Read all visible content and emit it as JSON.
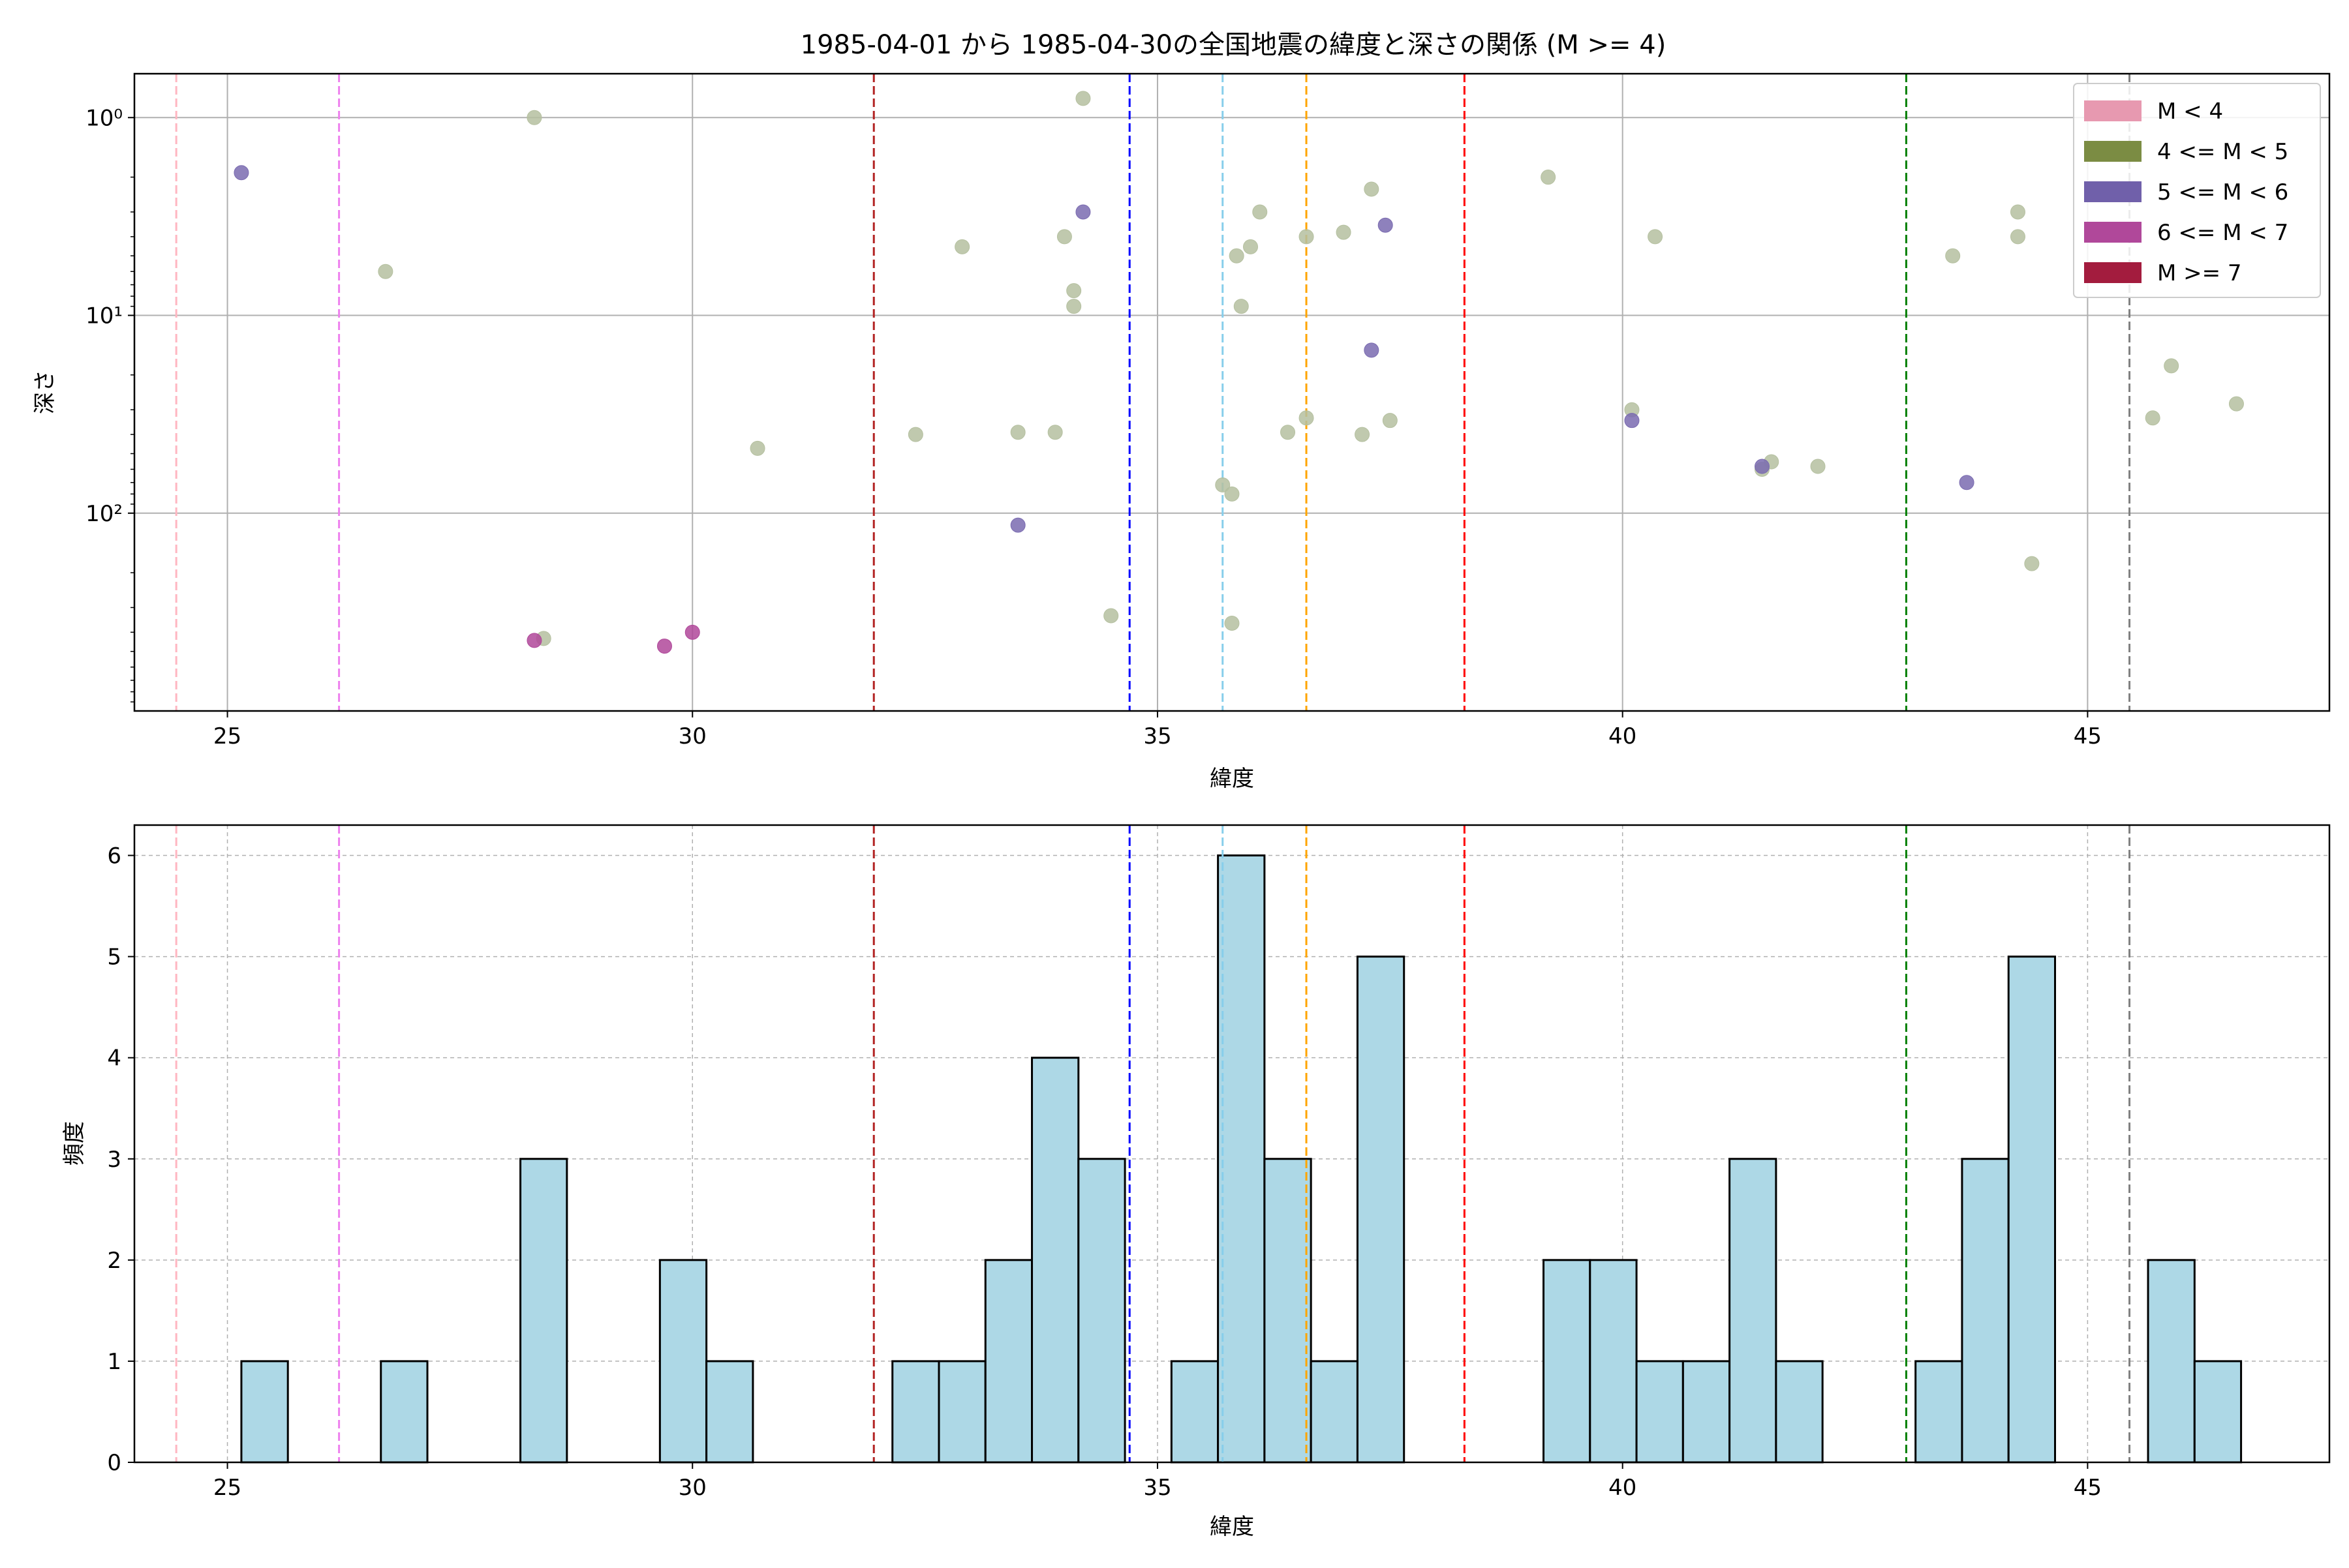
{
  "title": "1985-04-01 から 1985-04-30の全国地震の緯度と深さの関係 (M >= 4)",
  "chart_data": [
    {
      "type": "scatter",
      "title": "1985-04-01 から 1985-04-30の全国地震の緯度と深さの関係 (M >= 4)",
      "xlabel": "緯度",
      "ylabel": "深さ",
      "xlim": [
        24.0,
        47.6
      ],
      "ylim": [
        1000,
        0.6
      ],
      "yscale": "log",
      "y_inverted": true,
      "grid": true,
      "legend_position": "upper right",
      "x_ticks": [
        25,
        30,
        35,
        40,
        45
      ],
      "y_ticks": [
        {
          "value": 1,
          "label": "10⁰"
        },
        {
          "value": 10,
          "label": "10¹"
        },
        {
          "value": 100,
          "label": "10²"
        }
      ],
      "legend": [
        {
          "label": "M < 4",
          "color": "#e799b0"
        },
        {
          "label": "4 <= M < 5",
          "color": "#7b8c43"
        },
        {
          "label": "5 <= M < 6",
          "color": "#7060aa"
        },
        {
          "label": "6 <= M < 7",
          "color": "#b0489a"
        },
        {
          "label": "M >= 7",
          "color": "#a31c3e"
        }
      ],
      "vertical_lines": [
        {
          "x": 24.45,
          "color": "#ffb6c1"
        },
        {
          "x": 26.2,
          "color": "#ee82ee"
        },
        {
          "x": 31.95,
          "color": "#b22222"
        },
        {
          "x": 34.7,
          "color": "#0000ff"
        },
        {
          "x": 35.7,
          "color": "#87ceeb"
        },
        {
          "x": 36.6,
          "color": "#ffa500"
        },
        {
          "x": 38.3,
          "color": "#ff0000"
        },
        {
          "x": 43.05,
          "color": "#008000"
        },
        {
          "x": 45.45,
          "color": "#808080"
        }
      ],
      "series": [
        {
          "name": "4 <= M < 5",
          "color": "#b5c0a0",
          "points": [
            [
              28.3,
              1
            ],
            [
              26.7,
              6
            ],
            [
              28.4,
              430
            ],
            [
              30.7,
              47
            ],
            [
              32.4,
              40
            ],
            [
              32.9,
              4.5
            ],
            [
              33.5,
              39
            ],
            [
              33.9,
              39
            ],
            [
              34.0,
              4
            ],
            [
              34.1,
              7.5
            ],
            [
              34.1,
              9
            ],
            [
              34.2,
              0.8
            ],
            [
              34.5,
              330
            ],
            [
              35.7,
              72
            ],
            [
              35.8,
              80
            ],
            [
              35.8,
              360
            ],
            [
              35.85,
              5
            ],
            [
              35.9,
              9
            ],
            [
              36.0,
              4.5
            ],
            [
              36.1,
              3
            ],
            [
              36.4,
              39
            ],
            [
              36.6,
              33
            ],
            [
              36.6,
              4
            ],
            [
              37.0,
              3.8
            ],
            [
              37.2,
              40
            ],
            [
              37.3,
              2.3
            ],
            [
              37.5,
              34
            ],
            [
              39.2,
              2
            ],
            [
              40.1,
              30
            ],
            [
              40.35,
              4
            ],
            [
              41.5,
              60
            ],
            [
              41.6,
              55
            ],
            [
              42.1,
              58
            ],
            [
              43.55,
              5
            ],
            [
              44.25,
              3
            ],
            [
              44.25,
              4
            ],
            [
              44.4,
              180
            ],
            [
              45.7,
              33
            ],
            [
              45.9,
              18
            ],
            [
              46.6,
              28
            ]
          ]
        },
        {
          "name": "5 <= M < 6",
          "color": "#7a6bb0",
          "points": [
            [
              25.15,
              1.9
            ],
            [
              33.5,
              115
            ],
            [
              34.2,
              3
            ],
            [
              37.3,
              15
            ],
            [
              37.45,
              3.5
            ],
            [
              40.1,
              34
            ],
            [
              41.5,
              58
            ],
            [
              43.7,
              70
            ]
          ]
        },
        {
          "name": "6 <= M < 7",
          "color": "#b0489a",
          "points": [
            [
              28.3,
              440
            ],
            [
              30.0,
              400
            ],
            [
              29.7,
              470
            ]
          ]
        }
      ]
    },
    {
      "type": "bar",
      "xlabel": "緯度",
      "ylabel": "頻度",
      "xlim": [
        24.0,
        47.6
      ],
      "ylim": [
        0,
        6.3
      ],
      "grid": true,
      "x_ticks": [
        25,
        30,
        35,
        40,
        45
      ],
      "y_ticks": [
        0,
        1,
        2,
        3,
        4,
        5,
        6
      ],
      "bar_color": "#add8e6",
      "bin_width": 0.5,
      "bins": [
        {
          "x0": 25.15,
          "count": 1
        },
        {
          "x0": 26.65,
          "count": 1
        },
        {
          "x0": 28.15,
          "count": 3
        },
        {
          "x0": 29.65,
          "count": 2
        },
        {
          "x0": 30.15,
          "count": 1
        },
        {
          "x0": 32.15,
          "count": 1
        },
        {
          "x0": 32.65,
          "count": 1
        },
        {
          "x0": 33.15,
          "count": 2
        },
        {
          "x0": 33.65,
          "count": 4
        },
        {
          "x0": 34.15,
          "count": 3
        },
        {
          "x0": 35.15,
          "count": 1
        },
        {
          "x0": 35.65,
          "count": 6
        },
        {
          "x0": 36.15,
          "count": 3
        },
        {
          "x0": 36.65,
          "count": 1
        },
        {
          "x0": 37.15,
          "count": 5
        },
        {
          "x0": 39.15,
          "count": 2
        },
        {
          "x0": 39.65,
          "count": 2
        },
        {
          "x0": 40.15,
          "count": 1
        },
        {
          "x0": 40.65,
          "count": 1
        },
        {
          "x0": 41.15,
          "count": 3
        },
        {
          "x0": 41.65,
          "count": 1
        },
        {
          "x0": 43.15,
          "count": 1
        },
        {
          "x0": 43.65,
          "count": 3
        },
        {
          "x0": 44.15,
          "count": 5
        },
        {
          "x0": 45.65,
          "count": 2
        },
        {
          "x0": 46.15,
          "count": 1
        }
      ],
      "vertical_lines": [
        {
          "x": 24.45,
          "color": "#ffb6c1"
        },
        {
          "x": 26.2,
          "color": "#ee82ee"
        },
        {
          "x": 31.95,
          "color": "#b22222"
        },
        {
          "x": 34.7,
          "color": "#0000ff"
        },
        {
          "x": 35.7,
          "color": "#87ceeb"
        },
        {
          "x": 36.6,
          "color": "#ffa500"
        },
        {
          "x": 38.3,
          "color": "#ff0000"
        },
        {
          "x": 43.05,
          "color": "#008000"
        },
        {
          "x": 45.45,
          "color": "#808080"
        }
      ]
    }
  ]
}
